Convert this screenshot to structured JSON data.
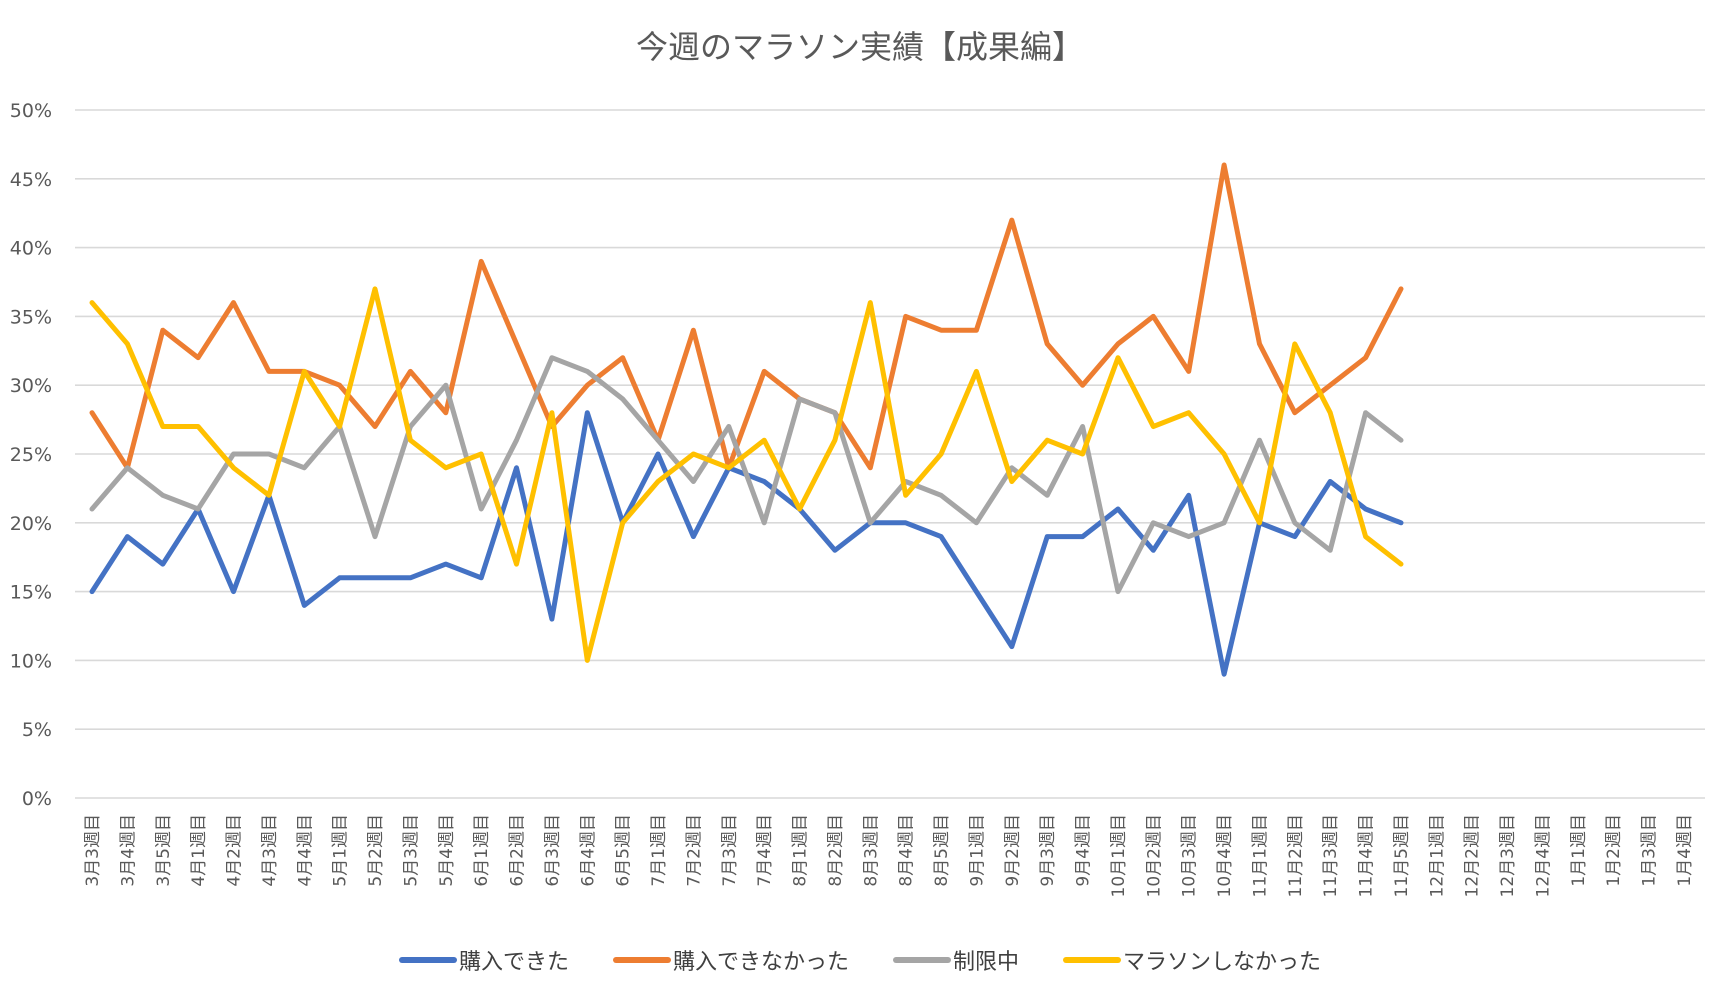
{
  "chart_data": {
    "type": "line",
    "title": "今週のマラソン実績【成果編】",
    "xlabel": "",
    "ylabel": "",
    "ylim": [
      0,
      50
    ],
    "y_ticks": [
      "0%",
      "5%",
      "10%",
      "15%",
      "20%",
      "25%",
      "30%",
      "35%",
      "40%",
      "45%",
      "50%"
    ],
    "y_tick_values": [
      0,
      5,
      10,
      15,
      20,
      25,
      30,
      35,
      40,
      45,
      50
    ],
    "grid": true,
    "legend_position": "bottom",
    "categories": [
      "3月3週目",
      "3月4週目",
      "3月5週目",
      "4月1週目",
      "4月2週目",
      "4月3週目",
      "4月4週目",
      "5月1週目",
      "5月2週目",
      "5月3週目",
      "5月4週目",
      "6月1週目",
      "6月2週目",
      "6月3週目",
      "6月4週目",
      "6月5週目",
      "7月1週目",
      "7月2週目",
      "7月3週目",
      "7月4週目",
      "8月1週目",
      "8月2週目",
      "8月3週目",
      "8月4週目",
      "8月5週目",
      "9月1週目",
      "9月2週目",
      "9月3週目",
      "9月4週目",
      "10月1週目",
      "10月2週目",
      "10月3週目",
      "10月4週目",
      "11月1週目",
      "11月2週目",
      "11月3週目",
      "11月4週目",
      "11月5週目",
      "12月1週目",
      "12月2週目",
      "12月3週目",
      "12月4週目",
      "1月1週目",
      "1月2週目",
      "1月3週目",
      "1月4週目"
    ],
    "series": [
      {
        "name": "購入できた",
        "color": "#4472c4",
        "values": [
          15,
          19,
          17,
          21,
          15,
          22,
          14,
          16,
          16,
          16,
          17,
          16,
          24,
          13,
          28,
          20,
          25,
          19,
          24,
          23,
          21,
          18,
          20,
          20,
          19,
          15,
          11,
          19,
          19,
          21,
          18,
          22,
          9,
          20,
          19,
          23,
          21,
          20,
          null,
          null,
          null,
          null,
          null,
          null,
          null,
          null
        ]
      },
      {
        "name": "購入できなかった",
        "color": "#ed7d31",
        "values": [
          28,
          24,
          34,
          32,
          36,
          31,
          31,
          30,
          27,
          31,
          28,
          39,
          33,
          27,
          30,
          32,
          26,
          34,
          24,
          31,
          29,
          28,
          24,
          35,
          34,
          34,
          42,
          33,
          30,
          33,
          35,
          31,
          46,
          33,
          28,
          30,
          32,
          37,
          null,
          null,
          null,
          null,
          null,
          null,
          null,
          null
        ]
      },
      {
        "name": "制限中",
        "color": "#a5a5a5",
        "values": [
          21,
          24,
          22,
          21,
          25,
          25,
          24,
          27,
          19,
          27,
          30,
          21,
          26,
          32,
          31,
          29,
          26,
          23,
          27,
          20,
          29,
          28,
          20,
          23,
          22,
          20,
          24,
          22,
          27,
          15,
          20,
          19,
          20,
          26,
          20,
          18,
          28,
          26,
          null,
          null,
          null,
          null,
          null,
          null,
          null,
          null
        ]
      },
      {
        "name": "マラソンしなかった",
        "color": "#ffc000",
        "values": [
          36,
          33,
          27,
          27,
          24,
          22,
          31,
          27,
          37,
          26,
          24,
          25,
          17,
          28,
          10,
          20,
          23,
          25,
          24,
          26,
          21,
          26,
          36,
          22,
          25,
          31,
          23,
          26,
          25,
          32,
          27,
          28,
          25,
          20,
          33,
          28,
          19,
          17,
          null,
          null,
          null,
          null,
          null,
          null,
          null,
          null
        ]
      }
    ]
  }
}
